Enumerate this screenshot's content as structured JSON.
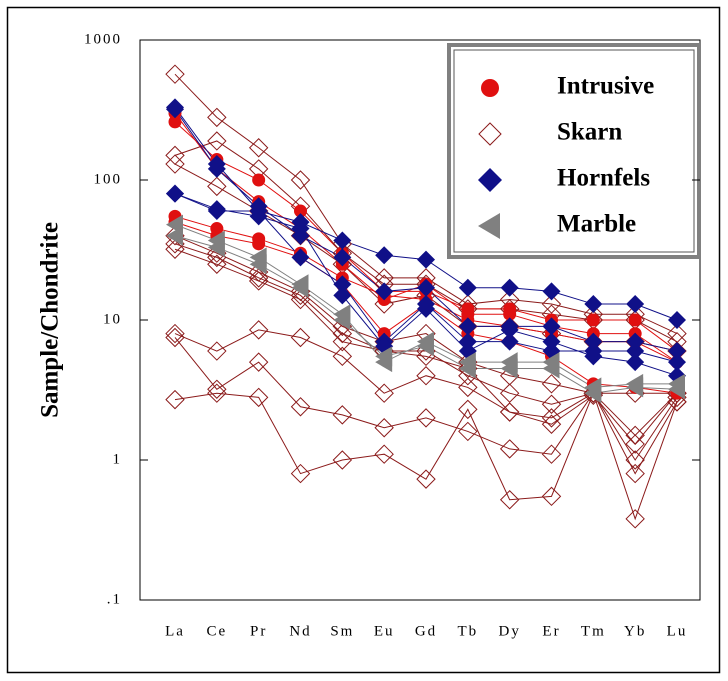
{
  "chart_data": {
    "type": "line",
    "log_scale": true,
    "y_label": "Sample/Chondrite",
    "categories": [
      "La",
      "Ce",
      "Pr",
      "Nd",
      "Sm",
      "Eu",
      "Gd",
      "Tb",
      "Dy",
      "Er",
      "Tm",
      "Yb",
      "Lu"
    ],
    "ylim": [
      0.1,
      1000
    ],
    "yticks": [
      {
        "value": 0.1,
        "label": ".1"
      },
      1,
      10,
      100,
      1000
    ],
    "legend": "upper right",
    "groups": [
      {
        "name": "Skarn",
        "color": "#8b1a1a",
        "marker": "open-diamond",
        "samples": [
          [
            570,
            280,
            170,
            100,
            35,
            20,
            20,
            13,
            14,
            13,
            11,
            11,
            8
          ],
          [
            150,
            190,
            120,
            65,
            30,
            18,
            18,
            12,
            12,
            11,
            10,
            10,
            7
          ],
          [
            130,
            90,
            60,
            40,
            25,
            13,
            15,
            9,
            9,
            8,
            7,
            7,
            6
          ],
          [
            40,
            30,
            22,
            16,
            9,
            7,
            8,
            5,
            4,
            3.5,
            3,
            3,
            3
          ],
          [
            32,
            25,
            19,
            14,
            7,
            6,
            6,
            4,
            3,
            2.5,
            3,
            1.5,
            3
          ],
          [
            35,
            28,
            20,
            15,
            8,
            6,
            5.5,
            4.5,
            2.2,
            1.8,
            2.9,
            1.3,
            3
          ],
          [
            8,
            6,
            8.5,
            7.5,
            5.5,
            3,
            4,
            3.3,
            2.2,
            2,
            3,
            1,
            2.8
          ],
          [
            7.5,
            3.2,
            5,
            2.4,
            2.1,
            1.7,
            2,
            1.6,
            1.2,
            1.1,
            3,
            0.8,
            2.6
          ],
          [
            2.7,
            3,
            2.8,
            0.8,
            1,
            1.1,
            0.73,
            2.3,
            0.52,
            0.55,
            3,
            0.38,
            2.6
          ]
        ]
      },
      {
        "name": "Intrusive",
        "color": "#e01010",
        "marker": "circle",
        "samples": [
          [
            260,
            140,
            100,
            60,
            30,
            16,
            16,
            12,
            12,
            10,
            10,
            10,
            6
          ],
          [
            55,
            45,
            38,
            30,
            20,
            15,
            14,
            10,
            9,
            8,
            7,
            7,
            5
          ],
          [
            300,
            120,
            70,
            45,
            25,
            14,
            18,
            11,
            11,
            9,
            8,
            8,
            5
          ],
          [
            50,
            40,
            35,
            28,
            18,
            8,
            13,
            8,
            7,
            5.5,
            3.5,
            3.3,
            3
          ]
        ]
      },
      {
        "name": "Hornfels",
        "color": "#101088",
        "marker": "diamond",
        "samples": [
          [
            330,
            130,
            60,
            50,
            37,
            29,
            27,
            17,
            17,
            16,
            13,
            13,
            10
          ],
          [
            80,
            60,
            60,
            28,
            18,
            7,
            13,
            7,
            7,
            6,
            6,
            6,
            5
          ],
          [
            320,
            120,
            65,
            40,
            28,
            16,
            17,
            9,
            9,
            9,
            7,
            7,
            6
          ],
          [
            80,
            62,
            55,
            45,
            15,
            6.5,
            12,
            6,
            8.5,
            7,
            5.5,
            5,
            4
          ]
        ]
      },
      {
        "name": "Marble",
        "color": "#808080",
        "marker": "triangle-left",
        "samples": [
          [
            48,
            37,
            28,
            18,
            11,
            5,
            7,
            5,
            5,
            5,
            3.3,
            3.5,
            3.5
          ],
          [
            40,
            33,
            25,
            17,
            10,
            5.5,
            6.5,
            4.5,
            4.5,
            4.5,
            3,
            3.3,
            3.2
          ]
        ]
      }
    ]
  }
}
